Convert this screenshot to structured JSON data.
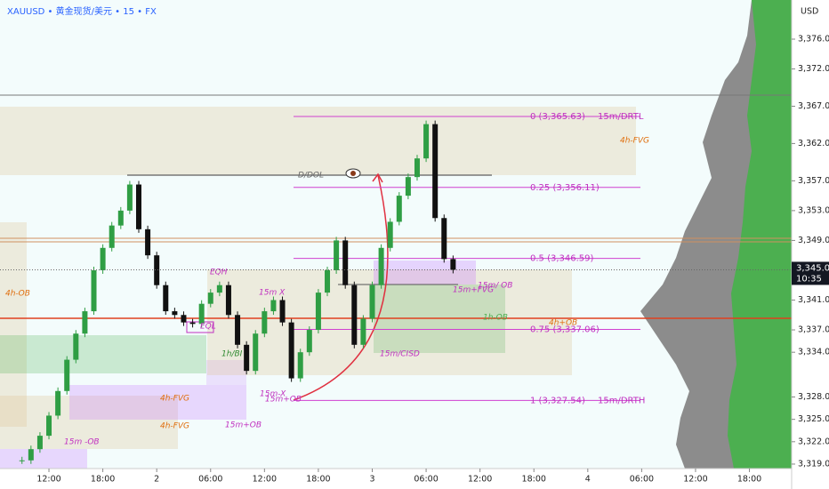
{
  "chart_data": {
    "type": "candlestick",
    "title": "XAUUSD • 黄金现货/美元 • 15 • FX",
    "currency": "USD",
    "x": [
      -3,
      -2,
      -1,
      0,
      1,
      2,
      3,
      4,
      5,
      6,
      7,
      8,
      9,
      10,
      11,
      12,
      13,
      14,
      15,
      16,
      17,
      18,
      19,
      20,
      21,
      22,
      23,
      24,
      25,
      26,
      27,
      28,
      29,
      30,
      31,
      32,
      33,
      34,
      35,
      36,
      37,
      38,
      39,
      40,
      41,
      42,
      43,
      44,
      45
    ],
    "series": [
      {
        "up_color": "#2f9e44",
        "down_color": "#111111",
        "values": [
          3319.5,
          3321,
          3322.8,
          3325.5,
          3328.8,
          3333,
          3336.5,
          3339.5,
          3345,
          3348,
          3351,
          3353,
          3356.5,
          3350.5,
          3347,
          3343,
          3339.5,
          3339,
          3338,
          3337.8,
          3340.5,
          3342,
          3343,
          3339,
          3335,
          3331.5,
          3336.5,
          3339.5,
          3341,
          3338,
          3330.5,
          3334,
          3337,
          3342,
          3345,
          3349,
          3343,
          3335,
          3338.5,
          3343,
          3348,
          3351.5,
          3355,
          3357.5,
          3360,
          3364.6,
          3352,
          3346.5,
          3345.06
        ]
      }
    ],
    "xlim": [
      -5.45,
      82.7
    ],
    "xticks": [
      {
        "value": 0,
        "label": "12:00"
      },
      {
        "value": 6,
        "label": "18:00"
      },
      {
        "value": 12,
        "label": "2"
      },
      {
        "value": 18,
        "label": "06:00"
      },
      {
        "value": 24,
        "label": "12:00"
      },
      {
        "value": 30,
        "label": "18:00"
      },
      {
        "value": 36,
        "label": "3"
      },
      {
        "value": 42,
        "label": "06:00"
      },
      {
        "value": 48,
        "label": "12:00"
      },
      {
        "value": 54,
        "label": "18:00"
      },
      {
        "value": 60,
        "label": "4"
      },
      {
        "value": 66,
        "label": "06:00"
      },
      {
        "value": 72,
        "label": "12:00"
      },
      {
        "value": 78,
        "label": "18:00"
      }
    ],
    "ylim": [
      3318.4,
      3381.25
    ],
    "yticks": [
      {
        "value": 3376,
        "label": "3,376.00"
      },
      {
        "value": 3372,
        "label": "3,372.00"
      },
      {
        "value": 3367,
        "label": "3,367.00"
      },
      {
        "value": 3362,
        "label": "3,362.00"
      },
      {
        "value": 3357,
        "label": "3,357.00"
      },
      {
        "value": 3353,
        "label": "3,353.00"
      },
      {
        "value": 3349,
        "label": "3,349.00"
      },
      {
        "value": 3341,
        "label": "3,341.00"
      },
      {
        "value": 3337,
        "label": "3,337.00"
      },
      {
        "value": 3334,
        "label": "3,334.00"
      },
      {
        "value": 3328,
        "label": "3,328.00"
      },
      {
        "value": 3325,
        "label": "3,325.00"
      },
      {
        "value": 3322,
        "label": "3,322.00"
      },
      {
        "value": 3319,
        "label": "3,319.00"
      }
    ],
    "last_price": {
      "value": 3345.06,
      "label": "3,345.06"
    },
    "countdown": "10:35",
    "fib": [
      {
        "price": 3365.63,
        "label": "0 (3,365.63)",
        "note": "15m/DRTL"
      },
      {
        "price": 3356.11,
        "label": "0.25 (3,356.11)"
      },
      {
        "price": 3346.59,
        "label": "0.5 (3,346.59)"
      },
      {
        "price": 3337.06,
        "label": "0.75 (3,337.06)"
      },
      {
        "price": 3327.54,
        "label": "1 (3,327.54)",
        "note": "15m/DRTH"
      }
    ],
    "annotations": [
      "D/DOL",
      "EQH",
      "EQL",
      "4h-OB",
      "15m X",
      "1h/BI",
      "15m-X",
      "15m+OB",
      "15m -OB",
      "4h-FVG",
      "15m/CISD",
      "15m/ OB",
      "15m+FVG",
      "1h-OB",
      "4h+OB",
      "4h-FVG",
      "15m+OB",
      "4h-FVG"
    ]
  }
}
